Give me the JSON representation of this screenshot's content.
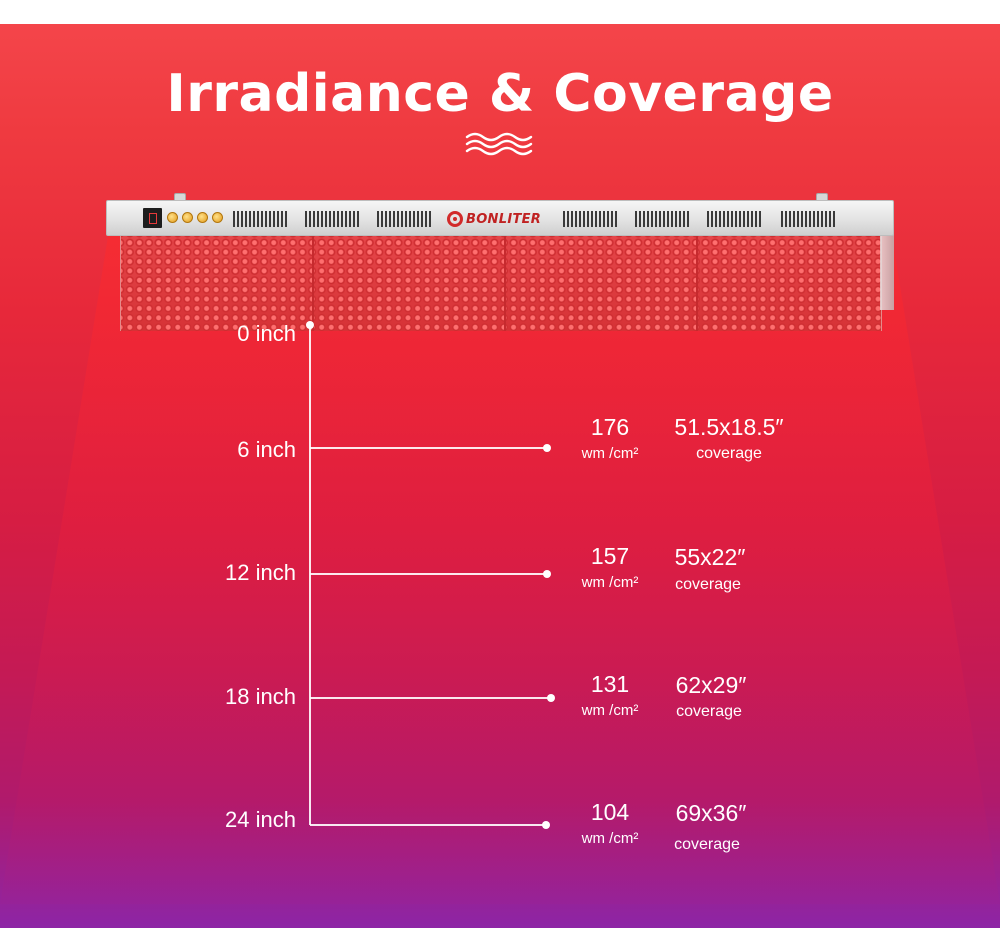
{
  "header": {
    "title": "Irradiance & Coverage"
  },
  "panel": {
    "brand": "BONLITER"
  },
  "distances": [
    {
      "label": "0 inch"
    },
    {
      "label": "6 inch",
      "irradiance": "176",
      "unit": "wm /cm²",
      "coverage": "51.5x18.5″",
      "coverage_label": "coverage"
    },
    {
      "label": "12 inch",
      "irradiance": "157",
      "unit": "wm /cm²",
      "coverage": "55x22″",
      "coverage_label": "coverage"
    },
    {
      "label": "18 inch",
      "irradiance": "131",
      "unit": "wm /cm²",
      "coverage": "62x29″",
      "coverage_label": "coverage"
    },
    {
      "label": "24 inch",
      "irradiance": "104",
      "unit": "wm /cm²",
      "coverage": "69x36″",
      "coverage_label": "coverage"
    }
  ],
  "colors": {
    "background_top": "#f4454a",
    "background_bottom": "#8d25a6",
    "text": "#ffffff",
    "brand_red": "#c02222"
  }
}
